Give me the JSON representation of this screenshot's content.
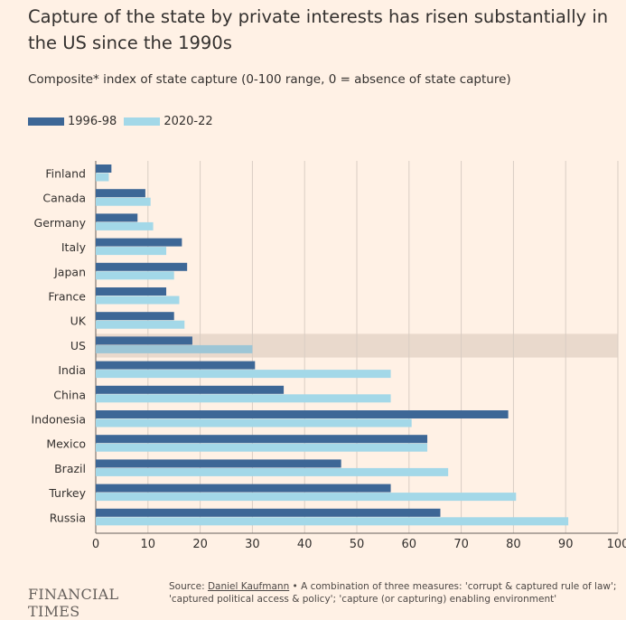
{
  "header": {
    "title": "Capture of the state by private interests has risen substantially in the US since the 1990s",
    "subtitle": "Composite* index of state capture (0-100 range, 0 = absence of state capture)"
  },
  "footer": {
    "brand": "FINANCIAL TIMES",
    "source_prefix": "Source: ",
    "source_link": "Daniel Kaufmann",
    "source_note": " • A combination of three measures: 'corrupt & captured rule of law'; 'captured political access & policy'; 'capture (or capturing) enabling environment'"
  },
  "chart_data": {
    "type": "bar",
    "orientation": "horizontal",
    "categories": [
      "Finland",
      "Canada",
      "Germany",
      "Italy",
      "Japan",
      "France",
      "UK",
      "US",
      "India",
      "China",
      "Indonesia",
      "Mexico",
      "Brazil",
      "Turkey",
      "Russia"
    ],
    "highlight": "US",
    "series": [
      {
        "name": "1996-98",
        "color": "#3d6796",
        "values": [
          3,
          9.5,
          8,
          16.5,
          17.5,
          13.5,
          15,
          18.5,
          30.5,
          36,
          79,
          63.5,
          47,
          56.5,
          66
        ]
      },
      {
        "name": "2020-22",
        "color": "#a3d8e8",
        "values": [
          2.5,
          10.5,
          11,
          13.5,
          15,
          16,
          17,
          30,
          56.5,
          56.5,
          60.5,
          63.5,
          67.5,
          80.5,
          90.5
        ]
      }
    ],
    "xlim": [
      0,
      100
    ],
    "xticks": [
      0,
      10,
      20,
      30,
      40,
      50,
      60,
      70,
      80,
      90,
      100
    ],
    "xlabel": "",
    "ylabel": "",
    "grid": true,
    "legend_position": "top-left",
    "colors": {
      "highlight_band": "#e9d9cc",
      "grid": "#d9cdc3",
      "highlight_series2": "#9dc6d6"
    }
  }
}
